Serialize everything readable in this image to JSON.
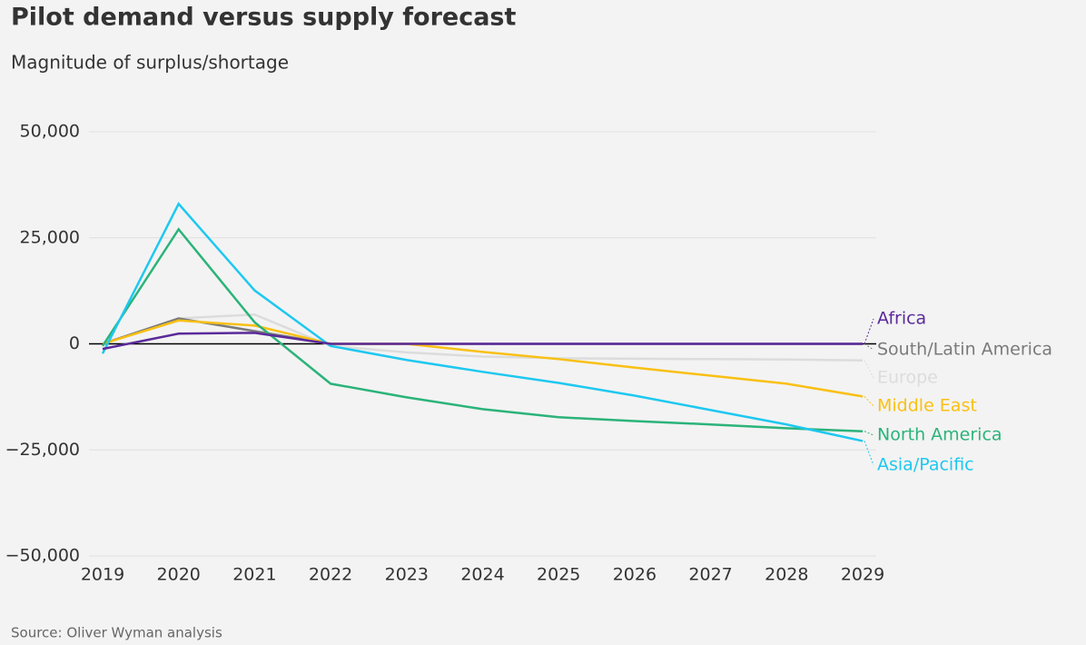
{
  "chart_data": {
    "type": "line",
    "title": "Pilot demand versus supply forecast",
    "subtitle": "Magnitude of surplus/shortage",
    "source": "Source: Oliver Wyman analysis",
    "categories": [
      "2019",
      "2020",
      "2021",
      "2022",
      "2023",
      "2024",
      "2025",
      "2026",
      "2027",
      "2028",
      "2029"
    ],
    "ylim": [
      -50000,
      50000
    ],
    "yticks": [
      {
        "value": -50000,
        "label": "−50,000"
      },
      {
        "value": -25000,
        "label": "−25,000"
      },
      0,
      {
        "value": 25000,
        "label": "25,000"
      },
      {
        "value": 50000,
        "label": "50,000"
      }
    ],
    "grid": true,
    "series": [
      {
        "name": "Europe",
        "color": "#dcdcdc",
        "values": [
          0,
          6000,
          6900,
          -500,
          -2000,
          -3000,
          -3400,
          -3500,
          -3600,
          -3700,
          -3900
        ]
      },
      {
        "name": "South/Latin America",
        "color": "#7a7a7a",
        "values": [
          0,
          6000,
          3000,
          0,
          0,
          0,
          0,
          0,
          0,
          0,
          0
        ]
      },
      {
        "name": "Middle East",
        "color": "#f9c013",
        "values": [
          0,
          5500,
          4300,
          0,
          0,
          -1900,
          -3600,
          -5600,
          -7500,
          -9400,
          -12400
        ]
      },
      {
        "name": "North America",
        "color": "#2bb37a",
        "values": [
          -500,
          27000,
          5100,
          -9400,
          -12600,
          -15400,
          -17300,
          -18200,
          -19000,
          -19900,
          -20600
        ]
      },
      {
        "name": "Asia/Pacific",
        "color": "#1ec8f0",
        "values": [
          -2300,
          33000,
          12600,
          -500,
          -3800,
          -6600,
          -9200,
          -12200,
          -15600,
          -19000,
          -22900
        ]
      },
      {
        "name": "Africa",
        "color": "#5b2a9a",
        "values": [
          -1200,
          2400,
          2600,
          0,
          0,
          0,
          0,
          0,
          0,
          0,
          0
        ]
      }
    ]
  }
}
